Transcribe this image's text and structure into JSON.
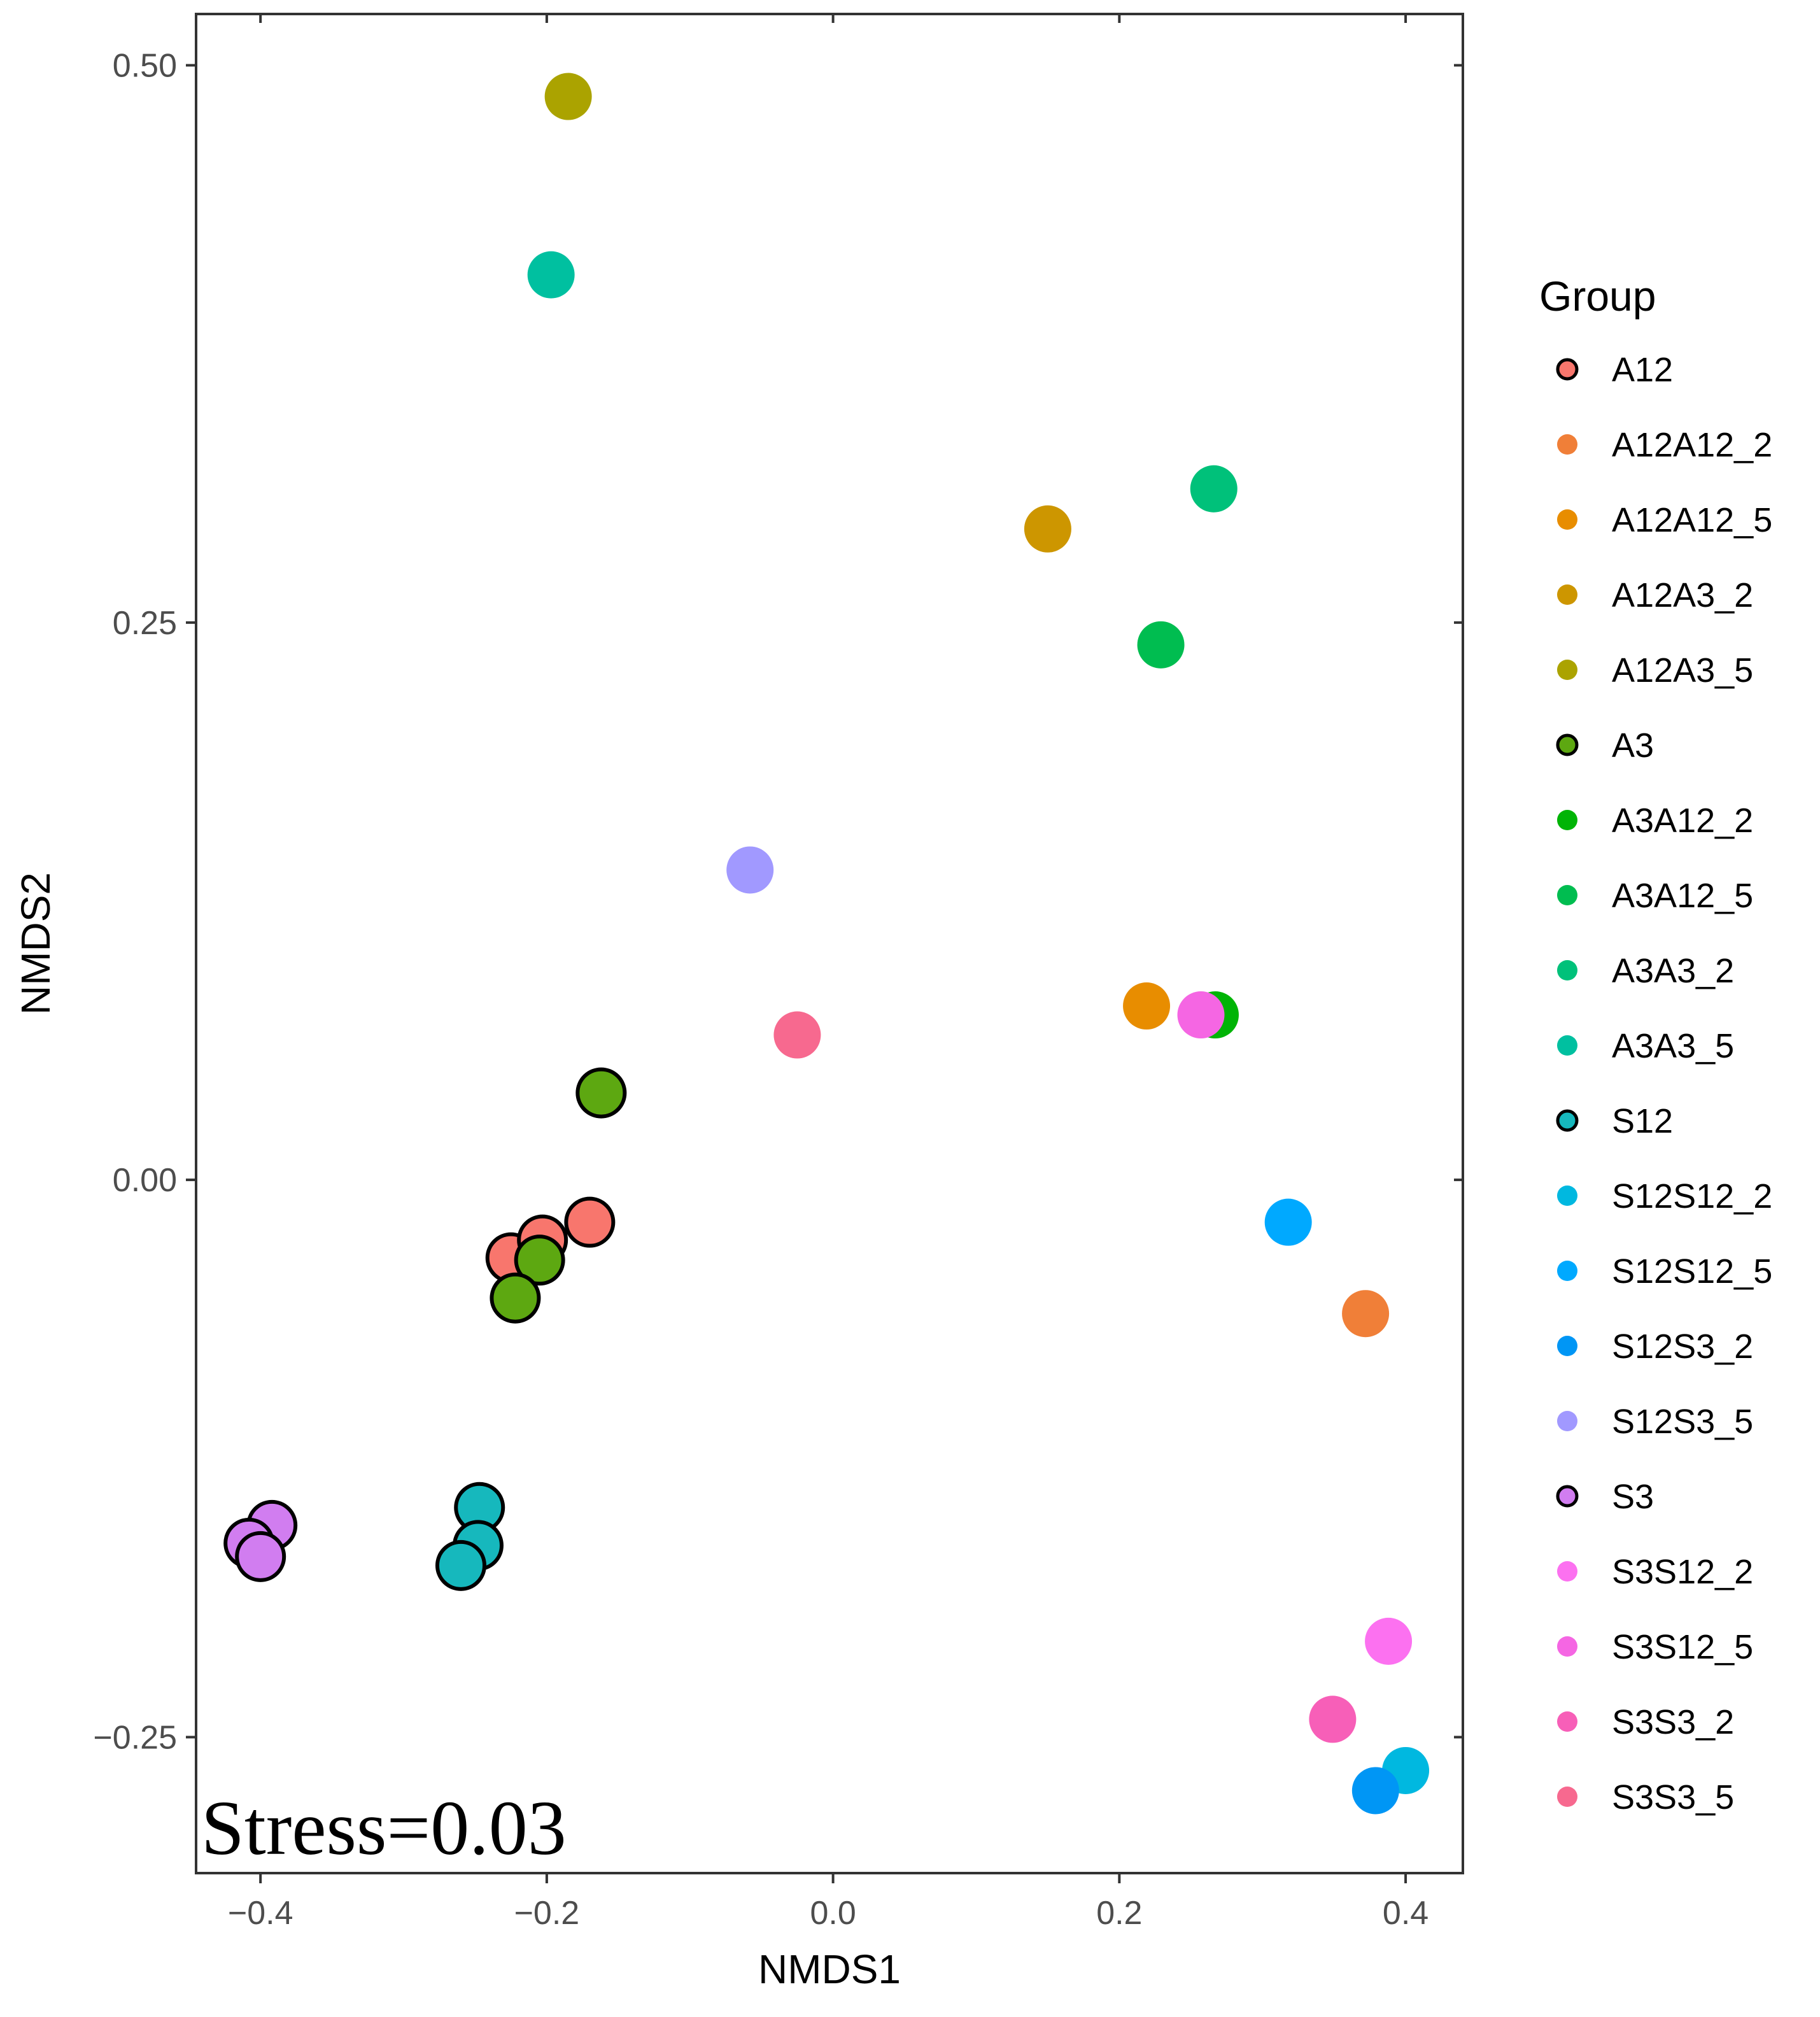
{
  "chart_data": {
    "type": "scatter",
    "title": "",
    "xlabel": "NMDS1",
    "ylabel": "NMDS2",
    "xlim": [
      -0.445,
      0.44
    ],
    "ylim": [
      -0.311,
      0.523
    ],
    "xticks": [
      -0.4,
      -0.2,
      0.0,
      0.2,
      0.4
    ],
    "xtick_labels": [
      "−0.4",
      "−0.2",
      "0.0",
      "0.2",
      "0.4"
    ],
    "yticks": [
      -0.25,
      0.0,
      0.25,
      0.5
    ],
    "ytick_labels": [
      "−0.25",
      "0.00",
      "0.25",
      "0.50"
    ],
    "grid": false,
    "annotation": "Stress=0.03",
    "legend": {
      "title": "Group",
      "placement": "right"
    },
    "series": [
      {
        "name": "A12",
        "color": "#F8766D",
        "outlined": true,
        "points": [
          {
            "x": -0.225,
            "y": -0.035
          },
          {
            "x": -0.203,
            "y": -0.027
          },
          {
            "x": -0.17,
            "y": -0.019
          }
        ]
      },
      {
        "name": "A12A12_2",
        "color": "#F07F38",
        "outlined": false,
        "points": [
          {
            "x": 0.372,
            "y": -0.06
          }
        ]
      },
      {
        "name": "A12A12_5",
        "color": "#E88D00",
        "outlined": false,
        "points": [
          {
            "x": 0.219,
            "y": 0.078
          }
        ]
      },
      {
        "name": "A12A3_2",
        "color": "#CD9600",
        "outlined": false,
        "points": [
          {
            "x": 0.15,
            "y": 0.292
          }
        ]
      },
      {
        "name": "A12A3_5",
        "color": "#ABA300",
        "outlined": false,
        "points": [
          {
            "x": -0.185,
            "y": 0.486
          }
        ]
      },
      {
        "name": "A3",
        "color": "#5DA811",
        "outlined": true,
        "points": [
          {
            "x": -0.162,
            "y": 0.039
          },
          {
            "x": -0.205,
            "y": -0.036
          },
          {
            "x": -0.222,
            "y": -0.053
          }
        ]
      },
      {
        "name": "A3A12_2",
        "color": "#00B406",
        "outlined": false,
        "points": [
          {
            "x": 0.267,
            "y": 0.074
          }
        ]
      },
      {
        "name": "A3A12_5",
        "color": "#00BD50",
        "outlined": false,
        "points": [
          {
            "x": 0.229,
            "y": 0.24
          }
        ]
      },
      {
        "name": "A3A3_2",
        "color": "#00C17A",
        "outlined": false,
        "points": [
          {
            "x": 0.266,
            "y": 0.31
          }
        ]
      },
      {
        "name": "A3A3_5",
        "color": "#00C0A0",
        "outlined": false,
        "points": [
          {
            "x": -0.197,
            "y": 0.406
          }
        ]
      },
      {
        "name": "S12",
        "color": "#16B8BD",
        "outlined": true,
        "points": [
          {
            "x": -0.247,
            "y": -0.147
          },
          {
            "x": -0.248,
            "y": -0.164
          },
          {
            "x": -0.26,
            "y": -0.173
          }
        ]
      },
      {
        "name": "S12S12_2",
        "color": "#00B8E0",
        "outlined": false,
        "points": [
          {
            "x": 0.4,
            "y": -0.265
          }
        ]
      },
      {
        "name": "S12S12_5",
        "color": "#00A9FF",
        "outlined": false,
        "points": [
          {
            "x": 0.318,
            "y": -0.019
          }
        ]
      },
      {
        "name": "S12S3_2",
        "color": "#0096F5",
        "outlined": false,
        "points": [
          {
            "x": 0.379,
            "y": -0.274
          }
        ]
      },
      {
        "name": "S12S3_5",
        "color": "#A199FF",
        "outlined": false,
        "points": [
          {
            "x": -0.058,
            "y": 0.139
          }
        ]
      },
      {
        "name": "S3",
        "color": "#D17DF0",
        "outlined": true,
        "points": [
          {
            "x": -0.392,
            "y": -0.155
          },
          {
            "x": -0.408,
            "y": -0.163
          },
          {
            "x": -0.4,
            "y": -0.169
          }
        ]
      },
      {
        "name": "S3S12_2",
        "color": "#FC71F0",
        "outlined": false,
        "points": [
          {
            "x": 0.388,
            "y": -0.207
          }
        ]
      },
      {
        "name": "S3S12_5",
        "color": "#F566E3",
        "outlined": false,
        "points": [
          {
            "x": 0.257,
            "y": 0.074
          }
        ]
      },
      {
        "name": "S3S3_2",
        "color": "#F75FB8",
        "outlined": false,
        "points": [
          {
            "x": 0.349,
            "y": -0.242
          }
        ]
      },
      {
        "name": "S3S3_5",
        "color": "#F7698F",
        "outlined": false,
        "points": [
          {
            "x": -0.025,
            "y": 0.065
          }
        ]
      }
    ]
  }
}
